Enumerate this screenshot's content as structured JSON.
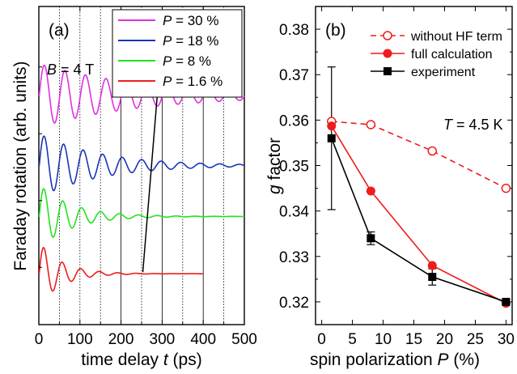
{
  "chart_data": [
    {
      "panel": "(a)",
      "type": "line",
      "xlabel": "time delay t (ps)",
      "xlabel_prefix": "time delay ",
      "xlabel_var": "t",
      "xlabel_suffix": " (ps)",
      "ylabel": "Faraday rotation (arb. units)",
      "xlim": [
        0,
        500
      ],
      "xticks": [
        0,
        100,
        200,
        300,
        400,
        500
      ],
      "vlines_dotted": [
        50,
        100,
        150,
        250,
        350,
        450
      ],
      "vlines_solid": [
        200,
        300,
        400
      ],
      "annotation_field": {
        "var": "B",
        "text": " = 4 T"
      },
      "legend_var": "P",
      "legend_position": "top-right",
      "series": [
        {
          "name": "P = 30 %",
          "value_text": " = 30 %",
          "color": "#e030e0",
          "baseline": 0.72,
          "amplitude": 0.1,
          "decay_ps": 260,
          "period_ps": 50,
          "tmax": 500
        },
        {
          "name": "P = 18 %",
          "value_text": " = 18 %",
          "color": "#1a34b8",
          "baseline": 0.5,
          "amplitude": 0.1,
          "decay_ps": 150,
          "period_ps": 47.5,
          "tmax": 500
        },
        {
          "name": "P = 8 %",
          "value_text": " = 8 %",
          "color": "#22e222",
          "baseline": 0.34,
          "amplitude": 0.1,
          "decay_ps": 80,
          "period_ps": 46,
          "tmax": 500
        },
        {
          "name": "P = 1.6 %",
          "value_text": " = 1.6 %",
          "color": "#ee1c1c",
          "baseline": 0.16,
          "amplitude": 0.1,
          "decay_ps": 55,
          "period_ps": 45,
          "tmax": 400
        }
      ],
      "arrow": {
        "from": [
          253,
          0.165
        ],
        "to": [
          290,
          0.75
        ]
      }
    },
    {
      "panel": "(b)",
      "type": "line",
      "xlabel": "spin polarization P (%)",
      "xlabel_prefix": "spin polarization ",
      "xlabel_var": "P",
      "xlabel_suffix": " (%)",
      "ylabel": "g factor",
      "ylabel_var": "g",
      "ylabel_suffix": " factor",
      "xlim": [
        -1,
        31
      ],
      "ylim": [
        0.315,
        0.385
      ],
      "xticks": [
        0,
        5,
        10,
        15,
        20,
        25,
        30
      ],
      "yticks": [
        0.32,
        0.33,
        0.34,
        0.35,
        0.36,
        0.37,
        0.38
      ],
      "annotation_temp": {
        "var": "T",
        "text": " = 4.5 K"
      },
      "legend_position": "top-right",
      "series": [
        {
          "name": "without HF term",
          "color": "#ee1c1c",
          "marker": "open-circle",
          "dash": true,
          "x": [
            1.6,
            8,
            18,
            30
          ],
          "y": [
            0.3597,
            0.359,
            0.3532,
            0.345
          ]
        },
        {
          "name": "full calculation",
          "color": "#ee1c1c",
          "marker": "filled-circle",
          "dash": false,
          "x": [
            1.6,
            8,
            18,
            30
          ],
          "y": [
            0.3587,
            0.3444,
            0.328,
            0.3197
          ]
        },
        {
          "name": "experiment",
          "color": "#000000",
          "marker": "filled-square",
          "dash": false,
          "x": [
            1.6,
            8,
            18,
            30
          ],
          "y": [
            0.356,
            0.334,
            0.3255,
            0.32
          ],
          "yerr": [
            0.0157,
            0.0014,
            0.0018,
            0.0005
          ]
        }
      ]
    }
  ]
}
